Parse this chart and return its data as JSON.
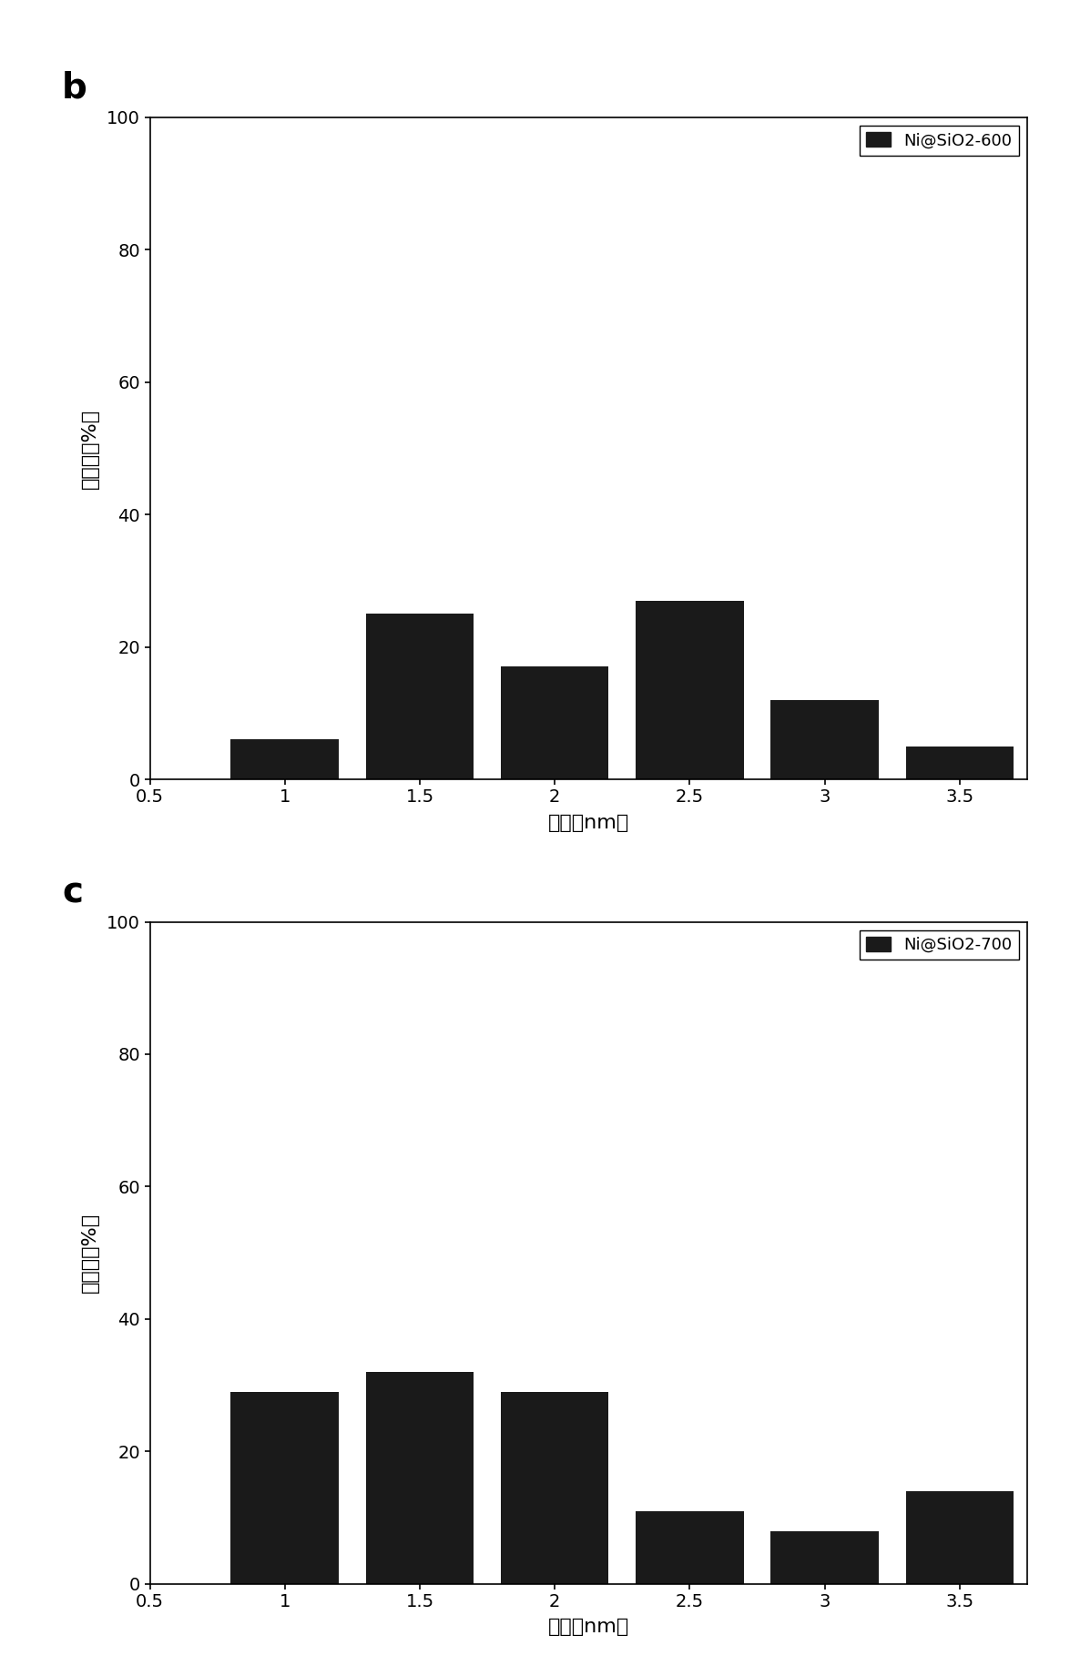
{
  "chart_b": {
    "label": "b",
    "legend_label": "Ni@SiO2-600",
    "x_positions": [
      1.0,
      1.5,
      2.0,
      2.5,
      3.0,
      3.5
    ],
    "values": [
      6,
      25,
      17,
      27,
      12,
      5
    ],
    "bar_width": 0.4,
    "bar_color": "#1a1a1a",
    "xlim": [
      0.5,
      3.75
    ],
    "ylim": [
      0,
      100
    ],
    "xticks": [
      0.5,
      1.0,
      1.5,
      2.0,
      2.5,
      3.0,
      3.5
    ],
    "yticks": [
      0,
      20,
      40,
      60,
      80,
      100
    ],
    "xlabel": "粒径（nm）",
    "ylabel": "百分比（%）"
  },
  "chart_c": {
    "label": "c",
    "legend_label": "Ni@SiO2-700",
    "x_positions": [
      1.0,
      1.5,
      2.0,
      2.5,
      3.0,
      3.5
    ],
    "values": [
      29,
      32,
      29,
      11,
      8,
      14
    ],
    "bar_width": 0.4,
    "bar_color": "#1a1a1a",
    "xlim": [
      0.5,
      3.75
    ],
    "ylim": [
      0,
      100
    ],
    "xticks": [
      0.5,
      1.0,
      1.5,
      2.0,
      2.5,
      3.0,
      3.5
    ],
    "yticks": [
      0,
      20,
      40,
      60,
      80,
      100
    ],
    "xlabel": "粒径（nm）",
    "ylabel": "百分比（%）"
  },
  "background_color": "#ffffff",
  "font_size_label": 16,
  "font_size_tick": 14,
  "font_size_legend": 13,
  "font_size_panel_label": 28
}
